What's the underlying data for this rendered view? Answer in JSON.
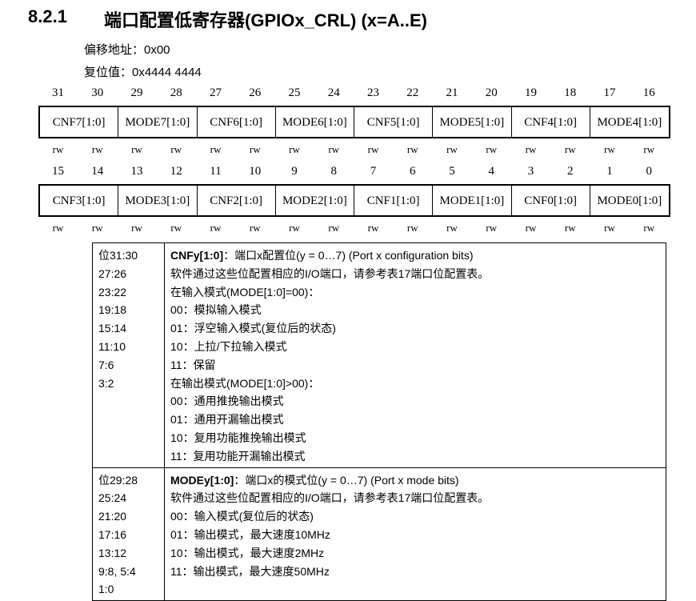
{
  "section": {
    "number": "8.2.1",
    "title": "端口配置低寄存器(GPIOx_CRL) (x=A..E)"
  },
  "offset": "偏移地址：0x00",
  "reset": "复位值：0x4444 4444",
  "register": {
    "rows": [
      {
        "bits": [
          31,
          30,
          29,
          28,
          27,
          26,
          25,
          24,
          23,
          22,
          21,
          20,
          19,
          18,
          17,
          16
        ],
        "fields": [
          "CNF7[1:0]",
          "MODE7[1:0]",
          "CNF6[1:0]",
          "MODE6[1:0]",
          "CNF5[1:0]",
          "MODE5[1:0]",
          "CNF4[1:0]",
          "MODE4[1:0]"
        ],
        "access": [
          "rw",
          "rw",
          "rw",
          "rw",
          "rw",
          "rw",
          "rw",
          "rw",
          "rw",
          "rw",
          "rw",
          "rw",
          "rw",
          "rw",
          "rw",
          "rw"
        ]
      },
      {
        "bits": [
          15,
          14,
          13,
          12,
          11,
          10,
          9,
          8,
          7,
          6,
          5,
          4,
          3,
          2,
          1,
          0
        ],
        "fields": [
          "CNF3[1:0]",
          "MODE3[1:0]",
          "CNF2[1:0]",
          "MODE2[1:0]",
          "CNF1[1:0]",
          "MODE1[1:0]",
          "CNF0[1:0]",
          "MODE0[1:0]"
        ],
        "access": [
          "rw",
          "rw",
          "rw",
          "rw",
          "rw",
          "rw",
          "rw",
          "rw",
          "rw",
          "rw",
          "rw",
          "rw",
          "rw",
          "rw",
          "rw",
          "rw"
        ]
      }
    ]
  },
  "descriptions": [
    {
      "bits": [
        "位31:30",
        "27:26",
        "23:22",
        "19:18",
        "15:14",
        "11:10",
        "7:6",
        "3:2"
      ],
      "name": "CNFy[1:0]",
      "summary": "：端口x配置位(y = 0…7) (Port x configuration bits)",
      "lines": [
        "软件通过这些位配置相应的I/O端口，请参考表17端口位配置表。",
        "在输入模式(MODE[1:0]=00)：",
        "00：模拟输入模式",
        "01：浮空输入模式(复位后的状态)",
        "10：上拉/下拉输入模式",
        "11：保留",
        "在输出模式(MODE[1:0]>00)：",
        "00：通用推挽输出模式",
        "01：通用开漏输出模式",
        "10：复用功能推挽输出模式",
        "11：复用功能开漏输出模式"
      ]
    },
    {
      "bits": [
        "位29:28",
        "25:24",
        "21:20",
        "17:16",
        "13:12",
        "9:8, 5:4",
        "1:0"
      ],
      "name": "MODEy[1:0]",
      "summary": "：端口x的模式位(y = 0…7) (Port x mode bits)",
      "lines": [
        "软件通过这些位配置相应的I/O端口，请参考表17端口位配置表。",
        "00：输入模式(复位后的状态)",
        "01：输出模式，最大速度10MHz",
        "10：输出模式，最大速度2MHz",
        "11：输出模式，最大速度50MHz"
      ]
    }
  ]
}
